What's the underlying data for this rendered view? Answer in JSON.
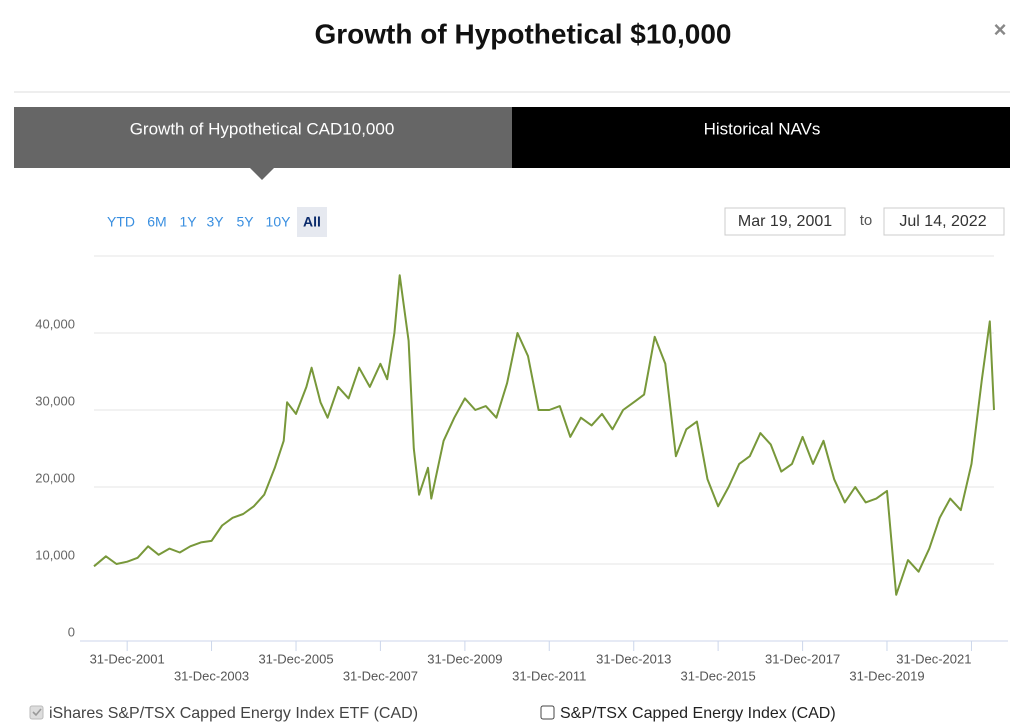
{
  "header": {
    "title": "Growth of Hypothetical $10,000",
    "close": "×"
  },
  "tabs": [
    "Growth of Hypothetical CAD10,000",
    "Historical NAVs"
  ],
  "controls": {
    "ranges": [
      "YTD",
      "6M",
      "1Y",
      "3Y",
      "5Y",
      "10Y",
      "All"
    ],
    "active_range": 6,
    "from": "Mar 19, 2001",
    "to_label": "to",
    "to": "Jul 14, 2022"
  },
  "chart_data": {
    "type": "line",
    "x": [
      "2001-03-19",
      "2001-06-30",
      "2001-09-30",
      "2001-12-31",
      "2002-03-31",
      "2002-06-30",
      "2002-09-30",
      "2002-12-31",
      "2003-03-31",
      "2003-06-30",
      "2003-09-30",
      "2003-12-31",
      "2004-03-31",
      "2004-06-30",
      "2004-09-30",
      "2004-12-31",
      "2005-03-31",
      "2005-06-30",
      "2005-09-15",
      "2005-10-15",
      "2005-12-31",
      "2006-03-31",
      "2006-05-15",
      "2006-07-31",
      "2006-09-30",
      "2006-12-31",
      "2007-03-31",
      "2007-06-30",
      "2007-09-30",
      "2007-12-31",
      "2008-02-28",
      "2008-04-30",
      "2008-06-15",
      "2008-08-31",
      "2008-10-15",
      "2008-11-30",
      "2009-02-15",
      "2009-03-15",
      "2009-06-30",
      "2009-09-30",
      "2009-12-31",
      "2010-03-31",
      "2010-06-30",
      "2010-09-30",
      "2010-12-31",
      "2011-03-31",
      "2011-06-30",
      "2011-09-30",
      "2011-12-31",
      "2012-03-31",
      "2012-06-30",
      "2012-09-30",
      "2012-12-31",
      "2013-03-31",
      "2013-06-30",
      "2013-09-30",
      "2013-12-31",
      "2014-03-31",
      "2014-06-30",
      "2014-09-30",
      "2014-12-31",
      "2015-03-31",
      "2015-06-30",
      "2015-09-30",
      "2015-12-31",
      "2016-03-31",
      "2016-06-30",
      "2016-09-30",
      "2016-12-31",
      "2017-03-31",
      "2017-06-30",
      "2017-09-30",
      "2017-12-31",
      "2018-03-31",
      "2018-06-30",
      "2018-09-30",
      "2018-12-31",
      "2019-03-31",
      "2019-06-30",
      "2019-09-30",
      "2019-12-31",
      "2020-03-20",
      "2020-06-30",
      "2020-09-30",
      "2020-12-31",
      "2021-03-31",
      "2021-06-30",
      "2021-09-30",
      "2021-12-31",
      "2022-03-31",
      "2022-06-08",
      "2022-07-14"
    ],
    "series": [
      {
        "name": "iShares S&P/TSX Capped Energy Index ETF (CAD)",
        "color": "#78983a",
        "checked": true,
        "values": [
          9700,
          11000,
          10000,
          10300,
          10800,
          12300,
          11200,
          12000,
          11500,
          12300,
          12800,
          13000,
          15000,
          16000,
          16500,
          17500,
          19000,
          22500,
          26000,
          31000,
          29500,
          33000,
          35500,
          31000,
          29000,
          33000,
          31500,
          35500,
          33000,
          36000,
          34000,
          40000,
          47500,
          39000,
          25000,
          19000,
          22500,
          18500,
          26000,
          29000,
          31500,
          30000,
          30500,
          29000,
          33500,
          40000,
          37000,
          30000,
          30000,
          30500,
          26500,
          29000,
          28000,
          29500,
          27500,
          30000,
          31000,
          32000,
          39500,
          36000,
          24000,
          27500,
          28500,
          21000,
          17500,
          20000,
          23000,
          24000,
          27000,
          25500,
          22000,
          23000,
          26500,
          23000,
          26000,
          21000,
          18000,
          20000,
          18000,
          18500,
          19500,
          6000,
          10500,
          9000,
          12000,
          16000,
          18500,
          17000,
          23000,
          34000,
          41500,
          30000
        ]
      },
      {
        "name": "S&P/TSX Capped Energy Index (CAD)",
        "checked": false
      }
    ],
    "xlim": [
      "2001-03-19",
      "2022-07-14"
    ],
    "xticks": [
      {
        "value": "2001-12-31",
        "label": "31-Dec-2001"
      },
      {
        "value": "2003-12-31",
        "label": "31-Dec-2003"
      },
      {
        "value": "2005-12-31",
        "label": "31-Dec-2005"
      },
      {
        "value": "2007-12-31",
        "label": "31-Dec-2007"
      },
      {
        "value": "2009-12-31",
        "label": "31-Dec-2009"
      },
      {
        "value": "2011-12-31",
        "label": "31-Dec-2011"
      },
      {
        "value": "2013-12-31",
        "label": "31-Dec-2013"
      },
      {
        "value": "2015-12-31",
        "label": "31-Dec-2015"
      },
      {
        "value": "2017-12-31",
        "label": "31-Dec-2017"
      },
      {
        "value": "2019-12-31",
        "label": "31-Dec-2019"
      },
      {
        "value": "2021-12-31",
        "label": "31-Dec-2021"
      }
    ],
    "ylim": [
      0,
      50000
    ],
    "yticks": [
      0,
      {
        "value": 10000,
        "label": "10,000"
      },
      {
        "value": 20000,
        "label": "20,000"
      },
      {
        "value": 30000,
        "label": "30,000"
      },
      {
        "value": 40000,
        "label": "40,000"
      }
    ],
    "grid": true
  }
}
